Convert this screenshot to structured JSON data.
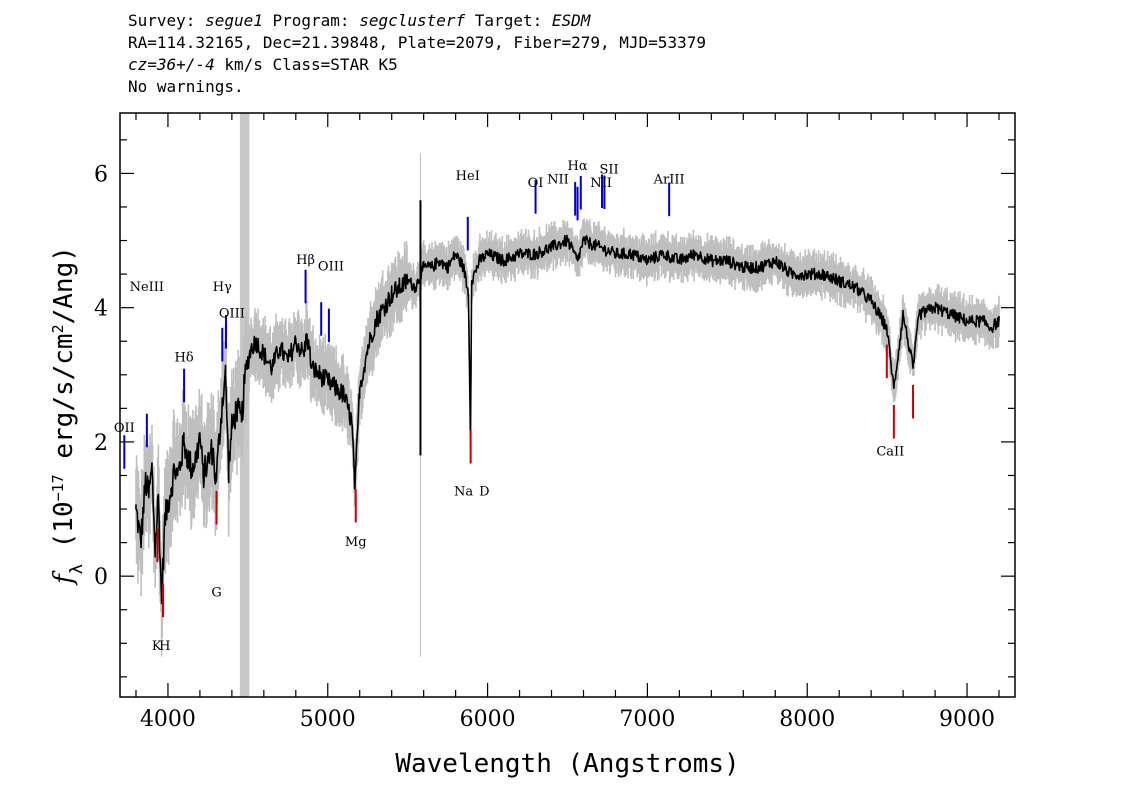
{
  "header": {
    "line1": {
      "survey_label": "Survey: ",
      "survey": "segue1",
      "program_label": " Program: ",
      "program": "segclusterf",
      "target_label": " Target: ",
      "target": "ESDM"
    },
    "line2": "RA=114.32165, Dec=21.39848, Plate=2079, Fiber=279, MJD=53379",
    "line3": {
      "cz": "cz=36+/-4",
      "rest": " km/s Class=STAR K5"
    },
    "line4": "No warnings."
  },
  "colors": {
    "flux": "#000000",
    "error": "#bfbfbf",
    "emission": "#0000cc",
    "absorption": "#cc0000",
    "masked_band": "#c8c8c8"
  },
  "chart_data": {
    "type": "line",
    "xlabel": "Wavelength (Angstroms)",
    "ylabel_parts": [
      "f",
      "λ",
      " (10",
      "−17",
      " erg/s/cm",
      "2",
      "/Ang)"
    ],
    "xlim": [
      3700,
      9300
    ],
    "ylim": [
      -1.8,
      6.9
    ],
    "x_ticks": [
      4000,
      5000,
      6000,
      7000,
      8000,
      9000
    ],
    "y_ticks": [
      0,
      2,
      4,
      6
    ],
    "masked_band": [
      4450,
      4510
    ],
    "series": [
      {
        "role": "flux",
        "x": [
          3800,
          3830,
          3860,
          3880,
          3900,
          3920,
          3940,
          3960,
          3980,
          4000,
          4020,
          4040,
          4060,
          4080,
          4100,
          4120,
          4150,
          4180,
          4200,
          4220,
          4250,
          4280,
          4300,
          4320,
          4340,
          4360,
          4380,
          4400,
          4430,
          4460,
          4480,
          4500,
          4520,
          4550,
          4600,
          4650,
          4700,
          4750,
          4800,
          4850,
          4870,
          4900,
          4950,
          5000,
          5050,
          5100,
          5150,
          5170,
          5200,
          5250,
          5300,
          5350,
          5400,
          5450,
          5500,
          5550,
          5580,
          5600,
          5650,
          5700,
          5750,
          5800,
          5850,
          5880,
          5893,
          5900,
          5950,
          6000,
          6100,
          6200,
          6300,
          6400,
          6500,
          6563,
          6600,
          6700,
          6800,
          6900,
          7000,
          7100,
          7200,
          7300,
          7400,
          7500,
          7600,
          7700,
          7800,
          7900,
          8000,
          8100,
          8200,
          8300,
          8400,
          8498,
          8542,
          8600,
          8662,
          8700,
          8800,
          8900,
          9000,
          9100,
          9150,
          9200
        ],
        "values": [
          1.0,
          0.5,
          1.4,
          1.2,
          1.6,
          0.4,
          1.2,
          -0.4,
          0.8,
          1.1,
          1.3,
          1.6,
          1.5,
          1.7,
          2.0,
          1.8,
          1.6,
          1.8,
          2.1,
          1.5,
          1.7,
          1.9,
          1.4,
          2.0,
          2.6,
          3.0,
          1.6,
          2.2,
          2.5,
          2.3,
          2.9,
          3.2,
          3.4,
          3.5,
          3.3,
          3.1,
          3.4,
          3.2,
          3.5,
          3.3,
          3.6,
          3.1,
          3.0,
          2.9,
          2.8,
          2.7,
          2.3,
          1.3,
          2.8,
          3.4,
          3.8,
          4.0,
          4.2,
          4.3,
          4.4,
          4.3,
          4.5,
          4.6,
          4.6,
          4.7,
          4.6,
          4.8,
          4.6,
          4.2,
          2.1,
          4.4,
          4.7,
          4.8,
          4.7,
          4.8,
          4.8,
          4.9,
          5.0,
          4.7,
          5.0,
          4.9,
          4.8,
          4.8,
          4.7,
          4.8,
          4.7,
          4.8,
          4.7,
          4.7,
          4.6,
          4.6,
          4.7,
          4.5,
          4.5,
          4.5,
          4.4,
          4.3,
          4.1,
          3.7,
          2.8,
          3.9,
          3.1,
          3.9,
          4.0,
          3.9,
          3.8,
          3.8,
          3.7,
          3.8
        ]
      }
    ],
    "emission_lines": [
      {
        "name": "OII",
        "x": 3727
      },
      {
        "name": "NeIII",
        "x": 3868
      },
      {
        "name": "Hδ",
        "x": 4101
      },
      {
        "name": "Hγ",
        "x": 4340
      },
      {
        "name": "OIII",
        "x": 4363
      },
      {
        "name": "Hβ",
        "x": 4861
      },
      {
        "name": "OIII",
        "x": 4959
      },
      {
        "name": "OIII",
        "x": 5007
      },
      {
        "name": "HeI",
        "x": 5876
      },
      {
        "name": "OI",
        "x": 6300
      },
      {
        "name": "NII",
        "x": 6548
      },
      {
        "name": "Hα",
        "x": 6563
      },
      {
        "name": "NII",
        "x": 6583
      },
      {
        "name": "SII",
        "x": 6716
      },
      {
        "name": "SII",
        "x": 6731
      },
      {
        "name": "ArIII",
        "x": 7136
      }
    ],
    "emission_labels": [
      {
        "text": "OII",
        "x": 3727,
        "y": 2.15
      },
      {
        "text": "NeIII",
        "x": 3868,
        "y": 4.25
      },
      {
        "text": "Hδ",
        "x": 4101,
        "y": 3.2
      },
      {
        "text": "Hγ",
        "x": 4340,
        "y": 4.25
      },
      {
        "text": "OIII",
        "x": 4400,
        "y": 3.85
      },
      {
        "text": "Hβ",
        "x": 4861,
        "y": 4.65
      },
      {
        "text": "OIII",
        "x": 5020,
        "y": 4.55
      },
      {
        "text": "HeI",
        "x": 5876,
        "y": 5.9
      },
      {
        "text": "OI",
        "x": 6300,
        "y": 5.8
      },
      {
        "text": "NII",
        "x": 6440,
        "y": 5.85
      },
      {
        "text": "Hα",
        "x": 6563,
        "y": 6.05
      },
      {
        "text": "NII",
        "x": 6710,
        "y": 5.8
      },
      {
        "text": "SII",
        "x": 6760,
        "y": 6.0
      },
      {
        "text": "ArIII",
        "x": 7136,
        "y": 5.85
      }
    ],
    "absorption_lines": [
      {
        "name": "K",
        "x": 3934
      },
      {
        "name": "H",
        "x": 3969
      },
      {
        "name": "G",
        "x": 4304
      },
      {
        "name": "Mg",
        "x": 5175
      },
      {
        "name": "Na D",
        "x": 5894
      },
      {
        "name": "CaII",
        "x": 8498
      },
      {
        "name": "CaII",
        "x": 8542
      },
      {
        "name": "CaII",
        "x": 8662
      }
    ],
    "absorption_labels": [
      {
        "text": "K",
        "x": 3930,
        "y": -1.1
      },
      {
        "text": "H",
        "x": 3980,
        "y": -1.1
      },
      {
        "text": "G",
        "x": 4304,
        "y": -0.3
      },
      {
        "text": "Mg",
        "x": 5175,
        "y": 0.45
      },
      {
        "text": "Na",
        "x": 5850,
        "y": 1.2
      },
      {
        "text": "D",
        "x": 5980,
        "y": 1.2
      },
      {
        "text": "CaII",
        "x": 8520,
        "y": 1.8
      }
    ]
  }
}
